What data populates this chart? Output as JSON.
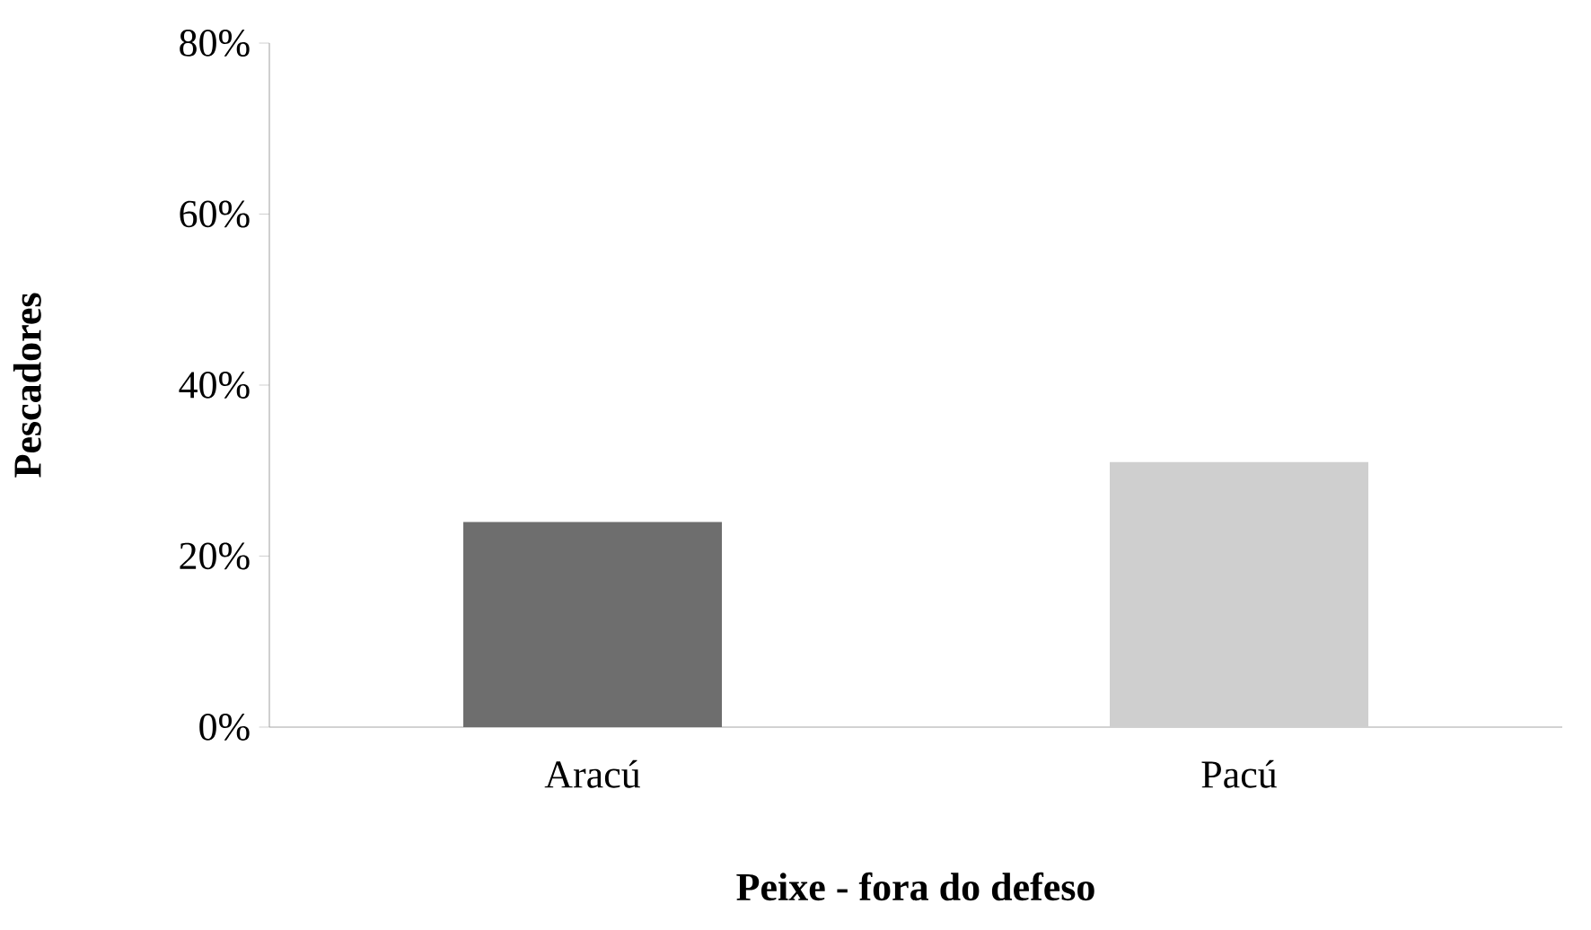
{
  "chart_data": {
    "type": "bar",
    "xlabel": "Peixe - fora do defeso",
    "ylabel": "Pescadores",
    "categories": [
      "Aracú",
      "Pacú"
    ],
    "values": [
      24,
      31
    ],
    "colors": [
      "#6e6e6e",
      "#cfcfcf"
    ],
    "ylim": [
      0,
      80
    ],
    "yticks": [
      {
        "value": 0,
        "label": "0%"
      },
      {
        "value": 20,
        "label": "20%"
      },
      {
        "value": 40,
        "label": "40%"
      },
      {
        "value": 60,
        "label": "60%"
      },
      {
        "value": 80,
        "label": "80%"
      }
    ]
  }
}
